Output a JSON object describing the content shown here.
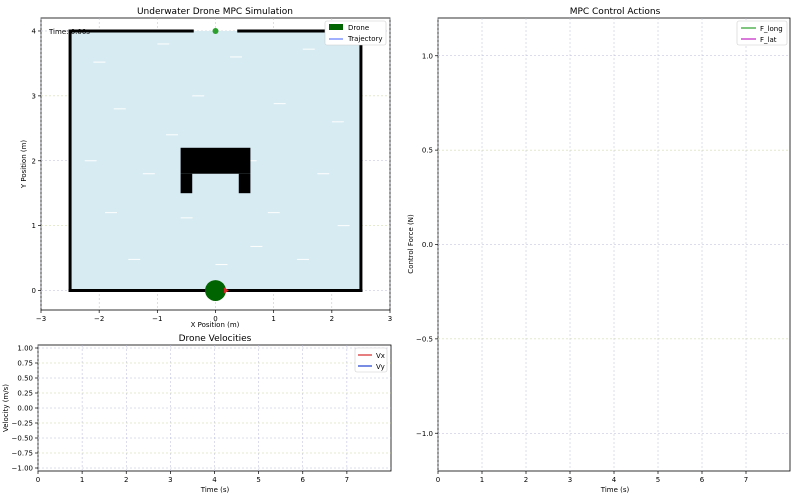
{
  "chart_data": [
    {
      "type": "scatter",
      "title": "Underwater Drone MPC Simulation",
      "xlabel": "X Position (m)",
      "ylabel": "Y Position (m)",
      "xlim": [
        -3,
        3
      ],
      "ylim": [
        -0.3,
        4.2
      ],
      "xticks": [
        -3,
        -2,
        -1,
        0,
        1,
        2,
        3
      ],
      "xtick_labels": [
        "−3",
        "−2",
        "−1",
        "0",
        "1",
        "2",
        "3"
      ],
      "yticks": [
        0,
        1,
        2,
        3,
        4
      ],
      "ytick_labels": [
        "0",
        "1",
        "2",
        "3",
        "4"
      ],
      "grid": true,
      "time_text": "Time: 0.00s",
      "legend": {
        "position": "top-right",
        "entries": [
          "Drone",
          "Trajectory"
        ]
      },
      "tank": {
        "x": [
          -2.5,
          2.5
        ],
        "y": [
          0,
          4
        ],
        "gap_top": [
          -0.4,
          0.4
        ],
        "water_color": "#d6ebf2",
        "wall_color": "#000000"
      },
      "obstacle": {
        "top_bar": {
          "x": [
            -0.6,
            0.6
          ],
          "y": [
            1.8,
            2.2
          ]
        },
        "left_leg": {
          "x": [
            -0.6,
            -0.4
          ],
          "y": [
            1.5,
            1.8
          ]
        },
        "right_leg": {
          "x": [
            0.4,
            0.6
          ],
          "y": [
            1.5,
            1.8
          ]
        }
      },
      "drone": {
        "x": 0,
        "y": 0,
        "radius": 0.18,
        "color": "#006400"
      },
      "heading_marker": {
        "x": 0.18,
        "y": 0,
        "color": "#d62728"
      },
      "goal": {
        "x": 0,
        "y": 4,
        "color": "#2ca02c"
      },
      "trajectory_color": "#4060ff"
    },
    {
      "type": "line",
      "title": "MPC Control Actions",
      "xlabel": "Time (s)",
      "ylabel": "Control Force (N)",
      "xlim": [
        0,
        8
      ],
      "ylim": [
        -1.2,
        1.2
      ],
      "xticks": [
        0,
        1,
        2,
        3,
        4,
        5,
        6,
        7
      ],
      "xtick_labels": [
        "0",
        "1",
        "2",
        "3",
        "4",
        "5",
        "6",
        "7"
      ],
      "yticks": [
        -1.0,
        -0.5,
        0.0,
        0.5,
        1.0
      ],
      "ytick_labels": [
        "−1.0",
        "−0.5",
        "0.0",
        "0.5",
        "1.0"
      ],
      "grid": true,
      "legend": {
        "position": "top-right"
      },
      "series": [
        {
          "name": "F_long",
          "color": "#2ca02c",
          "x": [],
          "y": []
        },
        {
          "name": "F_lat",
          "color": "#c020c0",
          "x": [],
          "y": []
        }
      ]
    },
    {
      "type": "line",
      "title": "Drone Velocities",
      "xlabel": "Time (s)",
      "ylabel": "Velocity (m/s)",
      "xlim": [
        0,
        8
      ],
      "ylim": [
        -1.05,
        1.05
      ],
      "xticks": [
        0,
        1,
        2,
        3,
        4,
        5,
        6,
        7
      ],
      "xtick_labels": [
        "0",
        "1",
        "2",
        "3",
        "4",
        "5",
        "6",
        "7"
      ],
      "yticks": [
        -1.0,
        -0.75,
        -0.5,
        -0.25,
        0.0,
        0.25,
        0.5,
        0.75,
        1.0
      ],
      "ytick_labels": [
        "−1.00",
        "−0.75",
        "−0.50",
        "−0.25",
        "0.00",
        "0.25",
        "0.50",
        "0.75",
        "1.00"
      ],
      "grid": true,
      "legend": {
        "position": "top-right"
      },
      "series": [
        {
          "name": "Vx",
          "color": "#d62728",
          "x": [],
          "y": []
        },
        {
          "name": "Vy",
          "color": "#1f3fd0",
          "x": [],
          "y": []
        }
      ]
    }
  ]
}
